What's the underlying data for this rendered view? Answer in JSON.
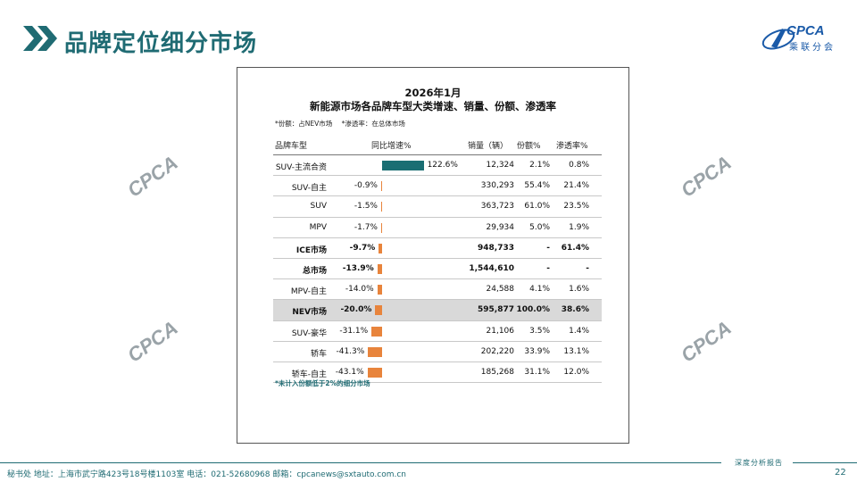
{
  "page": {
    "title": "品牌定位细分市场",
    "page_number": "22",
    "footer_text": "秘书处   地址：上海市武宁路423号18号楼1103室   电话：021-52680968   邮箱：cpcanews@sxtauto.com.cn",
    "footer_tag": "深度分析报告",
    "logo_text": "CPCA",
    "logo_sub": "乘联分会",
    "watermark_text": "CPCA",
    "colors": {
      "teal": "#1f6b73",
      "orange": "#e8843c",
      "bar_positive": "#1a6e73",
      "highlight_row": "#d9d9d9"
    }
  },
  "chart_data": {
    "type": "table",
    "title_line1": "2026年1月",
    "title_line2": "新能源市场各品牌车型大类增速、销量、份额、渗透率",
    "notes": [
      "*份额：占NEV市场",
      "*渗透率：在总体市场"
    ],
    "columns": [
      "品牌车型",
      "同比增速%",
      "销量（辆）",
      "份额%",
      "渗透率%"
    ],
    "x_range": [
      -50,
      130
    ],
    "rows": [
      {
        "name": "SUV-主流合资",
        "growth": 122.6,
        "growth_label": "122.6%",
        "volume": "12,324",
        "share": "2.1%",
        "penetration": "0.8%",
        "bold": false,
        "highlight": false
      },
      {
        "name": "SUV-自主",
        "growth": -0.9,
        "growth_label": "-0.9%",
        "volume": "330,293",
        "share": "55.4%",
        "penetration": "21.4%",
        "bold": false,
        "highlight": false
      },
      {
        "name": "SUV",
        "growth": -1.5,
        "growth_label": "-1.5%",
        "volume": "363,723",
        "share": "61.0%",
        "penetration": "23.5%",
        "bold": false,
        "highlight": false
      },
      {
        "name": "MPV",
        "growth": -1.7,
        "growth_label": "-1.7%",
        "volume": "29,934",
        "share": "5.0%",
        "penetration": "1.9%",
        "bold": false,
        "highlight": false
      },
      {
        "name": "ICE市场",
        "growth": -9.7,
        "growth_label": "-9.7%",
        "volume": "948,733",
        "share": "-",
        "penetration": "61.4%",
        "bold": true,
        "highlight": false
      },
      {
        "name": "总市场",
        "growth": -13.9,
        "growth_label": "-13.9%",
        "volume": "1,544,610",
        "share": "-",
        "penetration": "-",
        "bold": true,
        "highlight": false
      },
      {
        "name": "MPV-自主",
        "growth": -14.0,
        "growth_label": "-14.0%",
        "volume": "24,588",
        "share": "4.1%",
        "penetration": "1.6%",
        "bold": false,
        "highlight": false
      },
      {
        "name": "NEV市场",
        "growth": -20.0,
        "growth_label": "-20.0%",
        "volume": "595,877",
        "share": "100.0%",
        "penetration": "38.6%",
        "bold": true,
        "highlight": true
      },
      {
        "name": "SUV-豪华",
        "growth": -31.1,
        "growth_label": "-31.1%",
        "volume": "21,106",
        "share": "3.5%",
        "penetration": "1.4%",
        "bold": false,
        "highlight": false
      },
      {
        "name": "轿车",
        "growth": -41.3,
        "growth_label": "-41.3%",
        "volume": "202,220",
        "share": "33.9%",
        "penetration": "13.1%",
        "bold": false,
        "highlight": false
      },
      {
        "name": "轿车-自主",
        "growth": -43.1,
        "growth_label": "-43.1%",
        "volume": "185,268",
        "share": "31.1%",
        "penetration": "12.0%",
        "bold": false,
        "highlight": false
      }
    ],
    "footnote": "*未计入份额低于2%的细分市场"
  }
}
